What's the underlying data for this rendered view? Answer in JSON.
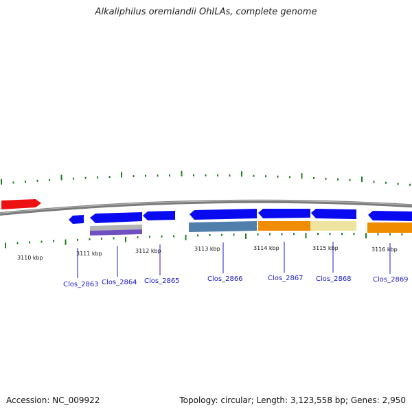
{
  "title": "Alkaliphilus oremlandii OhILAs, complete genome",
  "footer": {
    "accession": "Accession: NC_009922",
    "summary": "Topology: circular; Length: 3,123,558 bp; Genes: 2,950"
  },
  "colors": {
    "backbone": "#808080",
    "tick": "#1e7d1e",
    "gene_forward": "#0a0af0",
    "gene_highlight": "#ee1111",
    "label": "#1a1acc",
    "track_steel": "#4f7faa",
    "track_orange": "#f08c00",
    "track_khaki": "#eee4a0",
    "track_gray": "#b4b4b4",
    "track_purple": "#7050c0"
  },
  "kbp_labels": [
    "3110 kbp",
    "3111 kbp",
    "3112 kbp",
    "3113 kbp",
    "3114 kbp",
    "3115 kbp",
    "3116 kbp"
  ],
  "genes": [
    {
      "name": "Clos_2863",
      "kbp": 3110.9
    },
    {
      "name": "Clos_2864",
      "kbp": 3111.5
    },
    {
      "name": "Clos_2865",
      "kbp": 3112.2
    },
    {
      "name": "Clos_2866",
      "kbp": 3113.4
    },
    {
      "name": "Clos_2867",
      "kbp": 3114.5
    },
    {
      "name": "Clos_2868",
      "kbp": 3115.3
    },
    {
      "name": "Clos_2869",
      "kbp": 3116.3
    }
  ]
}
